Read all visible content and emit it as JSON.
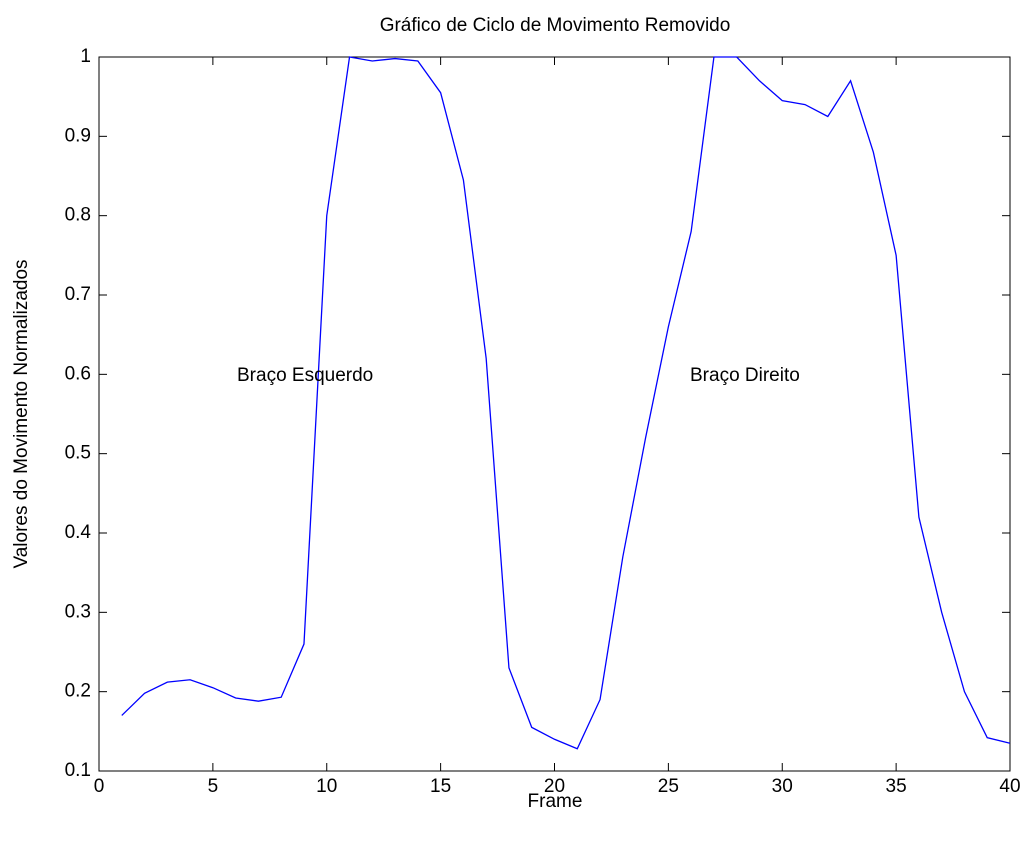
{
  "chart_data": {
    "type": "line",
    "title": "Gráfico de Ciclo de Movimento Removido",
    "xlabel": "Frame",
    "ylabel": "Valores do Movimento Normalizados",
    "x": [
      1,
      2,
      3,
      4,
      5,
      6,
      7,
      8,
      9,
      10,
      11,
      12,
      13,
      14,
      15,
      16,
      17,
      18,
      19,
      20,
      21,
      22,
      23,
      24,
      25,
      26,
      27,
      28,
      29,
      30,
      31,
      32,
      33,
      34,
      35,
      36,
      37,
      38,
      39,
      40
    ],
    "series": [
      {
        "color": "#0000ff",
        "values": [
          0.17,
          0.198,
          0.212,
          0.215,
          0.205,
          0.192,
          0.188,
          0.193,
          0.26,
          0.8,
          1.0,
          0.995,
          0.998,
          0.995,
          0.955,
          0.845,
          0.62,
          0.23,
          0.155,
          0.14,
          0.128,
          0.19,
          0.37,
          0.52,
          0.66,
          0.78,
          1.0,
          1.0,
          0.97,
          0.945,
          0.94,
          0.925,
          0.97,
          0.88,
          0.75,
          0.42,
          0.3,
          0.2,
          0.142,
          0.135
        ]
      }
    ],
    "annotations": [
      "Braço Esquerdo",
      "Braço Direito"
    ],
    "xlim": [
      0,
      40
    ],
    "xticks": [
      0,
      5,
      10,
      15,
      20,
      25,
      30,
      35,
      40
    ],
    "ylim": [
      0.1,
      1
    ],
    "yticks": [
      0.1,
      0.2,
      0.3,
      0.4,
      0.5,
      0.6,
      0.7,
      0.8,
      0.9,
      1
    ]
  }
}
